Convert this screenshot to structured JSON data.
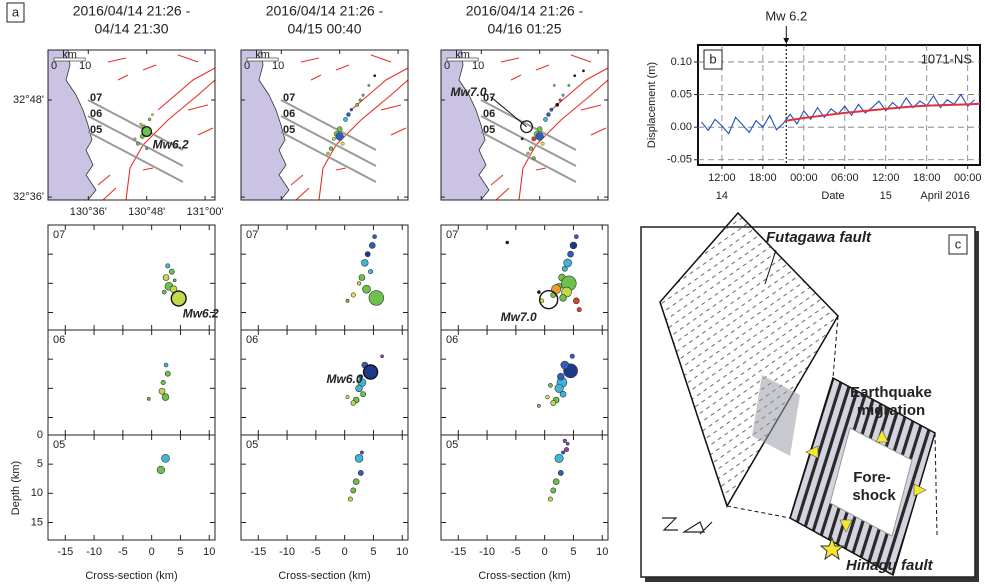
{
  "panel_a": {
    "label": "a",
    "profiles": [
      "07",
      "06",
      "05"
    ],
    "map_axes": {
      "xlim": [
        130.462,
        131.034
      ],
      "ylim": [
        32.594,
        32.903
      ],
      "xticks": [
        {
          "value": 130.6,
          "label": "130°36'"
        },
        {
          "value": 130.8,
          "label": "130°48'"
        },
        {
          "value": 131.0,
          "label": "131°00'"
        }
      ],
      "yticks": [
        {
          "value": 32.8,
          "label": "32°48'"
        },
        {
          "value": 32.6,
          "label": "32°36'"
        }
      ],
      "scale_bar": {
        "unit": "km",
        "ticks": [
          0,
          10
        ]
      }
    },
    "section_axes": {
      "xlim": [
        -18,
        11
      ],
      "xticks": [
        -15,
        -10,
        -5,
        0,
        5,
        10
      ],
      "ylim": [
        18,
        0
      ],
      "yticks": [
        0,
        5,
        10,
        15
      ],
      "x_label": "Cross-section (km)",
      "y_label": "Depth (km)"
    },
    "columns": [
      {
        "title": [
          "2016/04/14 21:26 -",
          "04/14 21:30"
        ],
        "map": {
          "lon": [
            130.79,
            130.78,
            130.77,
            130.8,
            130.81,
            130.76,
            130.82,
            130.785
          ],
          "lat": [
            32.745,
            32.75,
            32.71,
            32.7,
            32.76,
            32.72,
            32.77,
            32.725
          ],
          "mag": [
            4.0,
            3.5,
            3.8,
            3.5,
            3.6,
            3.4,
            3.3,
            4.2
          ],
          "colors": [
            "#6cc24a",
            "#c2d94b",
            "#6cc24a",
            "#3fb6d8",
            "#6cc24a",
            "#c2d94b",
            "#f2e23c",
            "#6cc24a"
          ],
          "mainshock": {
            "label": "Mw6.2",
            "lon": 130.8,
            "lat": 32.735,
            "mag": 6.2,
            "color": "#6cc24a"
          }
        },
        "sections": [
          {
            "x": [
              3.0,
              2.5,
              3.5,
              2.2,
              3.8,
              2.8,
              4.0
            ],
            "depth": [
              10.5,
              9.0,
              8.0,
              11.5,
              11.0,
              7.0,
              9.5
            ],
            "mag": [
              4.5,
              4.0,
              3.8,
              3.5,
              4.2,
              3.6,
              3.2
            ],
            "colors": [
              "#6cc24a",
              "#c2d94b",
              "#6cc24a",
              "#6cc24a",
              "#c2d94b",
              "#3fb6d8",
              "#6cc24a"
            ],
            "mainshock": {
              "label": "Mw6.2",
              "x": 4.7,
              "depth": 12.6,
              "mag": 6.2,
              "color": "#c2d94b"
            }
          },
          {
            "x": [
              2.5,
              2.8,
              2.0,
              1.8,
              2.4,
              -0.5
            ],
            "depth": [
              6.0,
              7.5,
              9.0,
              10.5,
              11.5,
              11.8
            ],
            "mag": [
              3.5,
              3.8,
              3.6,
              4.0,
              4.2,
              3.0
            ],
            "colors": [
              "#3fb6d8",
              "#6cc24a",
              "#6cc24a",
              "#c2d94b",
              "#6cc24a",
              "#6cc24a"
            ]
          },
          {
            "x": [
              2.4,
              1.6
            ],
            "depth": [
              4.0,
              6.0
            ],
            "mag": [
              4.5,
              4.4
            ],
            "colors": [
              "#3fb6d8",
              "#6cc24a"
            ]
          }
        ]
      },
      {
        "title": [
          "2016/04/14 21:26 -",
          "04/15 00:40"
        ],
        "map": {
          "lon": [
            130.77,
            130.78,
            130.8,
            130.82,
            130.84,
            130.86,
            130.88,
            130.9,
            130.92,
            130.79,
            130.81,
            130.83,
            130.87,
            130.76,
            130.8
          ],
          "lat": [
            32.7,
            32.72,
            32.74,
            32.76,
            32.78,
            32.79,
            32.81,
            32.83,
            32.85,
            32.73,
            32.71,
            32.77,
            32.8,
            32.69,
            32.725
          ],
          "mag": [
            4.0,
            3.8,
            4.5,
            4.2,
            3.6,
            3.8,
            3.5,
            3.4,
            3.3,
            4.6,
            3.8,
            4.0,
            3.5,
            3.6,
            5.5
          ],
          "colors": [
            "#6cc24a",
            "#c2d94b",
            "#6cc24a",
            "#3fb6d8",
            "#2f5dbd",
            "#6cc24a",
            "#3fb6d8",
            "#6cc24a",
            "#111111",
            "#6cc24a",
            "#f2e23c",
            "#2f5dbd",
            "#6cc24a",
            "#c2d94b",
            "#2f5dbd"
          ]
        },
        "sections": [
          {
            "x": [
              5.2,
              4.8,
              4.0,
              3.5,
              4.5,
              3.0,
              5.5,
              2.5,
              3.8,
              1.5,
              0.5
            ],
            "depth": [
              2.0,
              3.5,
              5.0,
              6.5,
              8.0,
              9.0,
              12.5,
              10.0,
              11.0,
              12.0,
              13.0
            ],
            "mag": [
              3.5,
              4.0,
              3.8,
              4.2,
              3.6,
              4.0,
              6.2,
              3.4,
              4.5,
              3.6,
              3.3
            ],
            "colors": [
              "#2f5dbd",
              "#2f5dbd",
              "#1c3a8c",
              "#3fb6d8",
              "#3fb6d8",
              "#6cc24a",
              "#6cc24a",
              "#c2d94b",
              "#6cc24a",
              "#f2e23c",
              "#6cc24a"
            ]
          },
          {
            "x": [
              3.5,
              3.0,
              2.5,
              3.2,
              2.0,
              1.5,
              2.8,
              0.5,
              6.5
            ],
            "depth": [
              6.0,
              9.0,
              10.0,
              11.0,
              12.0,
              12.5,
              8.0,
              11.5,
              4.5
            ],
            "mag": [
              4.0,
              4.5,
              4.2,
              3.8,
              4.0,
              3.7,
              3.5,
              3.3,
              3.0
            ],
            "colors": [
              "#2f5dbd",
              "#3fb6d8",
              "#3fb6d8",
              "#6cc24a",
              "#6cc24a",
              "#c2d94b",
              "#2f5dbd",
              "#f2e23c",
              "#9a3fb0"
            ],
            "mainshock": {
              "label": "Mw6.0",
              "x": 4.5,
              "depth": 7.2,
              "mag": 6.0,
              "color": "#1c3a8c"
            }
          },
          {
            "x": [
              2.5,
              2.8,
              2.0,
              1.5,
              1.0,
              3.0
            ],
            "depth": [
              4.0,
              6.5,
              8.0,
              9.5,
              11.0,
              3.0
            ],
            "mag": [
              4.5,
              3.8,
              4.0,
              3.8,
              3.6,
              3.3
            ],
            "colors": [
              "#3fb6d8",
              "#2f5dbd",
              "#6cc24a",
              "#6cc24a",
              "#c2d94b",
              "#2f5dbd"
            ]
          }
        ]
      },
      {
        "title": [
          "2016/04/14 21:26 -",
          "04/16 01:25"
        ],
        "map": {
          "lon": [
            130.77,
            130.78,
            130.8,
            130.82,
            130.84,
            130.86,
            130.88,
            130.9,
            130.92,
            130.79,
            130.81,
            130.83,
            130.87,
            130.76,
            130.8,
            130.74,
            130.95,
            130.85,
            130.78
          ],
          "lat": [
            32.7,
            32.72,
            32.74,
            32.76,
            32.78,
            32.79,
            32.81,
            32.83,
            32.85,
            32.73,
            32.71,
            32.77,
            32.8,
            32.69,
            32.725,
            32.72,
            32.86,
            32.83,
            32.68
          ],
          "mag": [
            4.0,
            4.2,
            4.5,
            4.2,
            3.8,
            3.8,
            3.5,
            3.4,
            3.3,
            4.6,
            3.8,
            4.0,
            3.5,
            3.6,
            5.5,
            3.4,
            3.2,
            3.3,
            3.8
          ],
          "colors": [
            "#6cc24a",
            "#d8412b",
            "#6cc24a",
            "#3fb6d8",
            "#2f5dbd",
            "#111111",
            "#3fb6d8",
            "#6cc24a",
            "#111111",
            "#6cc24a",
            "#f2e23c",
            "#2f5dbd",
            "#d8412b",
            "#c2d94b",
            "#2f5dbd",
            "#111111",
            "#111111",
            "#ee9a2a",
            "#6cc24a"
          ],
          "mainshock": {
            "label": "Mw7.0",
            "lon": 130.755,
            "lat": 32.745,
            "mag": 7.0,
            "color": "none"
          }
        },
        "sections": [
          {
            "x": [
              5.5,
              5.0,
              4.5,
              4.0,
              3.5,
              3.0,
              2.5,
              4.2,
              3.8,
              1.5,
              -0.5,
              5.5,
              6.0,
              2.0,
              -6.5,
              3.2,
              -1.0
            ],
            "depth": [
              2.0,
              3.5,
              5.0,
              6.5,
              7.5,
              9.0,
              10.5,
              10.0,
              11.5,
              12.0,
              13.0,
              13.0,
              14.5,
              11.0,
              3.0,
              12.5,
              11.5
            ],
            "mag": [
              3.5,
              4.2,
              4.0,
              4.5,
              3.8,
              4.2,
              4.0,
              6.2,
              5.0,
              3.8,
              3.5,
              4.0,
              3.6,
              4.8,
              3.0,
              4.2,
              3.2
            ],
            "colors": [
              "#2f5dbd",
              "#1c3a8c",
              "#2f5dbd",
              "#3fb6d8",
              "#3fb6d8",
              "#6cc24a",
              "#6cc24a",
              "#6cc24a",
              "#c2d94b",
              "#6cc24a",
              "#f2e23c",
              "#d8412b",
              "#d8412b",
              "#ee9a2a",
              "#111111",
              "#6cc24a",
              "#111111"
            ],
            "mainshock": {
              "label": "Mw7.0",
              "x": 0.7,
              "depth": 12.8,
              "mag": 7.0,
              "color": "none"
            }
          },
          {
            "x": [
              4.5,
              3.5,
              3.0,
              2.5,
              3.2,
              2.0,
              1.5,
              2.8,
              0.5,
              4.8,
              -1.0,
              1.0
            ],
            "depth": [
              7.0,
              6.0,
              9.0,
              10.0,
              11.0,
              12.0,
              12.5,
              8.0,
              11.5,
              4.5,
              13.0,
              9.5
            ],
            "mag": [
              6.0,
              4.5,
              5.0,
              4.6,
              4.0,
              4.0,
              3.8,
              4.2,
              3.4,
              3.6,
              3.2,
              3.5
            ],
            "colors": [
              "#1c3a8c",
              "#2f5dbd",
              "#3fb6d8",
              "#3fb6d8",
              "#3fb6d8",
              "#6cc24a",
              "#c2d94b",
              "#2f5dbd",
              "#f2e23c",
              "#2f5dbd",
              "#ee9a2a",
              "#6cc24a"
            ]
          },
          {
            "x": [
              3.5,
              3.8,
              2.5,
              2.8,
              2.0,
              1.5,
              1.0,
              3.2,
              4.0
            ],
            "depth": [
              1.0,
              2.5,
              4.0,
              6.5,
              8.0,
              9.5,
              11.0,
              3.0,
              1.5
            ],
            "mag": [
              3.4,
              3.6,
              4.6,
              3.8,
              4.0,
              3.8,
              3.6,
              3.3,
              3.2
            ],
            "colors": [
              "#9a3fb0",
              "#9a3fb0",
              "#3fb6d8",
              "#2f5dbd",
              "#6cc24a",
              "#6cc24a",
              "#c2d94b",
              "#2f5dbd",
              "#9a3fb0"
            ]
          }
        ]
      }
    ]
  },
  "panel_b": {
    "label": "b",
    "station": "1071-NS",
    "y_label": "Displacement (m)",
    "x_label": "Date",
    "xlim": [
      8.5,
      49.8
    ],
    "ylim": [
      -0.058,
      0.126
    ],
    "xticks": [
      {
        "value": 12,
        "label": "12:00"
      },
      {
        "value": 18,
        "label": "18:00"
      },
      {
        "value": 24,
        "label": "00:00"
      },
      {
        "value": 30,
        "label": "06:00"
      },
      {
        "value": 36,
        "label": "12:00"
      },
      {
        "value": 42,
        "label": "18:00"
      },
      {
        "value": 48,
        "label": "00:00"
      }
    ],
    "day_labels": [
      {
        "value": 12,
        "label": "14"
      },
      {
        "value": 36,
        "label": "15"
      },
      {
        "value": 44.7,
        "label": "April 2016"
      }
    ],
    "yticks": [
      {
        "value": 0.1,
        "label": "0.10"
      },
      {
        "value": 0.05,
        "label": "0.05"
      },
      {
        "value": 0,
        "label": "0.00"
      },
      {
        "value": -0.05,
        "label": "-0.05"
      }
    ],
    "grid": true,
    "event": {
      "value": 21.43,
      "label": "Mw 6.2"
    },
    "series": [
      {
        "color": "#1f4fbf",
        "x": [
          9,
          10,
          11,
          12,
          13,
          14,
          15,
          16,
          17,
          18,
          19,
          20,
          21,
          22,
          23,
          24,
          25,
          26,
          27,
          28,
          29,
          30,
          31,
          32,
          33,
          34,
          35,
          36,
          37,
          38,
          39,
          40,
          41,
          42,
          43,
          44,
          45,
          46,
          47,
          48,
          49
        ],
        "values": [
          0.008,
          -0.005,
          0.012,
          0.002,
          -0.01,
          0.015,
          0.004,
          -0.008,
          0.01,
          0.0,
          0.018,
          -0.004,
          0.006,
          0.02,
          0.005,
          0.025,
          0.012,
          0.03,
          0.015,
          0.028,
          0.02,
          0.032,
          0.018,
          0.035,
          0.022,
          0.03,
          0.04,
          0.025,
          0.038,
          0.028,
          0.045,
          0.03,
          0.04,
          0.033,
          0.048,
          0.03,
          0.042,
          0.035,
          0.05,
          0.032,
          0.042
        ]
      },
      {
        "color": "#e0303a",
        "x": [
          21.43,
          24,
          27,
          30,
          33,
          36,
          39,
          42,
          45,
          48,
          49.8
        ],
        "values": [
          0.01,
          0.014,
          0.018,
          0.022,
          0.025,
          0.028,
          0.031,
          0.033,
          0.034,
          0.035,
          0.036
        ]
      }
    ]
  },
  "panel_c": {
    "label": "c",
    "futagawa": "Futagawa fault",
    "migration": [
      "Earthquake",
      "migration"
    ],
    "foreshock": [
      "Fore-",
      "shock"
    ],
    "hinagu": "Hinagu fault"
  }
}
